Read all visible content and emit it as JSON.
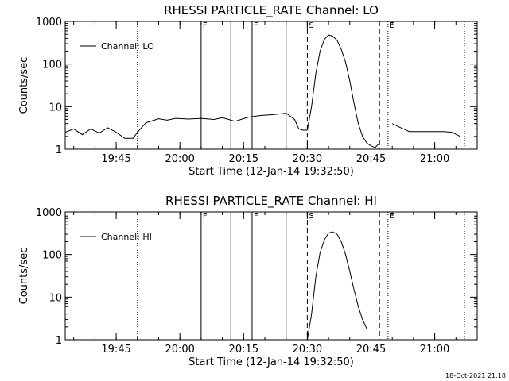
{
  "chart_data": [
    {
      "type": "line",
      "title": "RHESSI PARTICLE_RATE Channel: LO",
      "xlabel": "Start Time (12-Jan-14 19:32:50)",
      "ylabel": "Counts/sec",
      "y_scale": "log",
      "ylim": [
        1,
        1000
      ],
      "xlim": [
        "19:33",
        "21:10"
      ],
      "x_ticks": [
        "19:45",
        "20:00",
        "20:15",
        "20:30",
        "20:45",
        "21:00"
      ],
      "y_ticks": [
        "1",
        "10",
        "100",
        "1000"
      ],
      "legend": {
        "label": "Channel: LO",
        "placement": "top-left"
      },
      "series": [
        {
          "name": "Channel: LO",
          "segments": [
            {
              "x": [
                "19:33",
                "19:35",
                "19:37",
                "19:39",
                "19:41",
                "19:43",
                "19:45",
                "19:47",
                "19:49",
                "19:50",
                "19:52",
                "19:55",
                "19:57",
                "19:59",
                "20:02",
                "20:05",
                "20:08",
                "20:10",
                "20:13",
                "20:16",
                "20:19",
                "20:22",
                "20:25",
                "20:27",
                "20:28",
                "20:29",
                "20:30"
              ],
              "y": [
                2.5,
                3,
                2.2,
                3,
                2.4,
                3.2,
                2.5,
                1.8,
                1.8,
                2.5,
                4.2,
                5.2,
                4.8,
                5.3,
                5.1,
                5.3,
                5,
                5.5,
                4.5,
                5.6,
                6.2,
                6.5,
                7,
                5,
                3,
                2.8,
                2.8
              ]
            },
            {
              "x": [
                "20:30",
                "20:31",
                "20:32",
                "20:33",
                "20:34",
                "20:35",
                "20:36",
                "20:37",
                "20:38",
                "20:39",
                "20:40",
                "20:41",
                "20:42",
                "20:43",
                "20:44",
                "20:45",
                "20:46",
                "20:47"
              ],
              "y": [
                2.8,
                10,
                60,
                200,
                380,
                480,
                450,
                360,
                220,
                110,
                40,
                12,
                4,
                2,
                1.4,
                1.2,
                1.1,
                1.4
              ]
            },
            {
              "x": [
                "20:50",
                "20:52",
                "20:54",
                "20:56",
                "20:58",
                "21:00",
                "21:02",
                "21:04",
                "21:06"
              ],
              "y": [
                4,
                3.2,
                2.6,
                2.6,
                2.6,
                2.6,
                2.6,
                2.5,
                2
              ]
            }
          ]
        }
      ],
      "markers": [
        {
          "time": "19:50",
          "label": "",
          "style": "dotted"
        },
        {
          "time": "20:05",
          "label": "F",
          "style": "solid"
        },
        {
          "time": "20:12",
          "label": "",
          "style": "solid"
        },
        {
          "time": "20:17",
          "label": "F",
          "style": "solid"
        },
        {
          "time": "20:25",
          "label": "",
          "style": "solid"
        },
        {
          "time": "20:30",
          "label": "S",
          "style": "dashed"
        },
        {
          "time": "20:47",
          "label": "",
          "style": "dashed"
        },
        {
          "time": "20:49",
          "label": "E",
          "style": "dotted"
        },
        {
          "time": "21:07",
          "label": "",
          "style": "dotted"
        }
      ]
    },
    {
      "type": "line",
      "title": "RHESSI PARTICLE_RATE Channel: HI",
      "xlabel": "Start Time (12-Jan-14 19:32:50)",
      "ylabel": "Counts/sec",
      "y_scale": "log",
      "ylim": [
        1,
        1000
      ],
      "xlim": [
        "19:33",
        "21:10"
      ],
      "x_ticks": [
        "19:45",
        "20:00",
        "20:15",
        "20:30",
        "20:45",
        "21:00"
      ],
      "y_ticks": [
        "1",
        "10",
        "100",
        "1000"
      ],
      "legend": {
        "label": "Channel: HI",
        "placement": "top-left"
      },
      "series": [
        {
          "name": "Channel: HI",
          "segments": [
            {
              "x": [
                "20:30",
                "20:31",
                "20:32",
                "20:33",
                "20:34",
                "20:35",
                "20:36",
                "20:37",
                "20:38",
                "20:39",
                "20:40",
                "20:41",
                "20:42",
                "20:43",
                "20:44"
              ],
              "y": [
                1,
                4,
                30,
                110,
                220,
                320,
                340,
                300,
                200,
                100,
                40,
                15,
                6,
                3,
                1.8
              ]
            }
          ]
        }
      ],
      "markers": [
        {
          "time": "19:50",
          "label": "",
          "style": "dotted"
        },
        {
          "time": "20:05",
          "label": "F",
          "style": "solid"
        },
        {
          "time": "20:12",
          "label": "",
          "style": "solid"
        },
        {
          "time": "20:17",
          "label": "F",
          "style": "solid"
        },
        {
          "time": "20:25",
          "label": "",
          "style": "solid"
        },
        {
          "time": "20:30",
          "label": "S",
          "style": "dashed"
        },
        {
          "time": "20:47",
          "label": "",
          "style": "dashed"
        },
        {
          "time": "20:49",
          "label": "E",
          "style": "dotted"
        },
        {
          "time": "21:07",
          "label": "",
          "style": "dotted"
        }
      ]
    }
  ],
  "footer": {
    "timestamp": "18-Oct-2021 21:18"
  }
}
